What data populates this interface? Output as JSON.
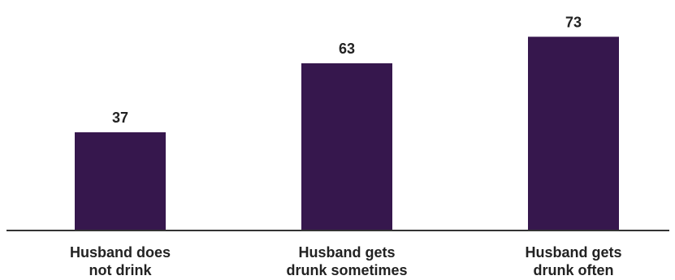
{
  "chart_data": {
    "type": "bar",
    "categories": [
      [
        "Husband does",
        "not drink"
      ],
      [
        "Husband gets",
        "drunk sometimes"
      ],
      [
        "Husband gets",
        "drunk often"
      ]
    ],
    "values": [
      37,
      63,
      73
    ],
    "ylim": [
      0,
      80
    ],
    "grid": false,
    "legend": "none",
    "bar_color": "#36174d",
    "axis_color": "#333333",
    "text_color": "#222222"
  }
}
